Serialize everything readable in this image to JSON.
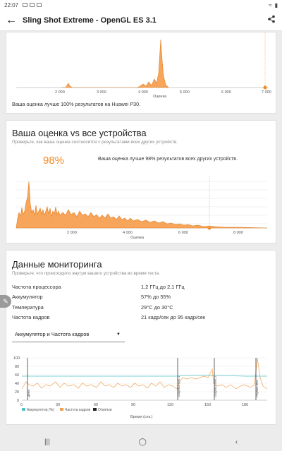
{
  "status": {
    "time": "22:07"
  },
  "appbar": {
    "title": "Sling Shot Extreme - OpenGL ES 3.1"
  },
  "card1": {
    "chart_data": {
      "type": "area",
      "x_ticks": [
        "2 000",
        "3 000",
        "4 000",
        "5 000",
        "6 000",
        "7 000"
      ],
      "xlabel": "Оценка",
      "peak_at": 4550,
      "score_marker": 7000
    },
    "note": "Ваша оценка лучше 100% результатов на Huawei P30."
  },
  "card2": {
    "title": "Ваша оценка vs все устройства",
    "subtitle": "Проверьте, как ваша оценка соотносится с результатами всех других устройств.",
    "percent": "98%",
    "beat_text": "Ваша оценка лучше 98% результатов всех других устройств.",
    "chart_data": {
      "type": "area",
      "x_ticks": [
        "2 000",
        "4 000",
        "6 000",
        "8 000"
      ],
      "xlabel": "Оценка",
      "score_marker": 7000
    }
  },
  "card3": {
    "title": "Данные мониторинга",
    "subtitle": "Проверьте, что происходило внутри вашего устройства во время теста.",
    "rows": [
      {
        "label": "Частота процессора",
        "value": "1,2 ГГц до 2,1 ГГц"
      },
      {
        "label": "Аккумулятор",
        "value": "57% до 55%"
      },
      {
        "label": "Температура",
        "value": "29°C до 30°C"
      },
      {
        "label": "Частота кадров",
        "value": "21 кадр/сек до 95 кадр/сек"
      }
    ],
    "dropdown": "Аккумулятор и Частота кадров",
    "chart_data": {
      "type": "line",
      "y_ticks": [
        "100",
        "80",
        "60",
        "40",
        "20",
        "0"
      ],
      "x_ticks": [
        "0",
        "30",
        "60",
        "90",
        "120",
        "150",
        "180"
      ],
      "xlabel": "Время (сек.)",
      "markers": [
        "Демо",
        "Graphics test 1",
        "Graphics test 2",
        "Physics test"
      ],
      "legend": [
        "Аккумулятор (%)",
        "Частота кадров",
        "Отметки"
      ],
      "colors": {
        "battery": "#4fc3c8",
        "fps": "#f0a050",
        "marks": "#222"
      }
    }
  }
}
